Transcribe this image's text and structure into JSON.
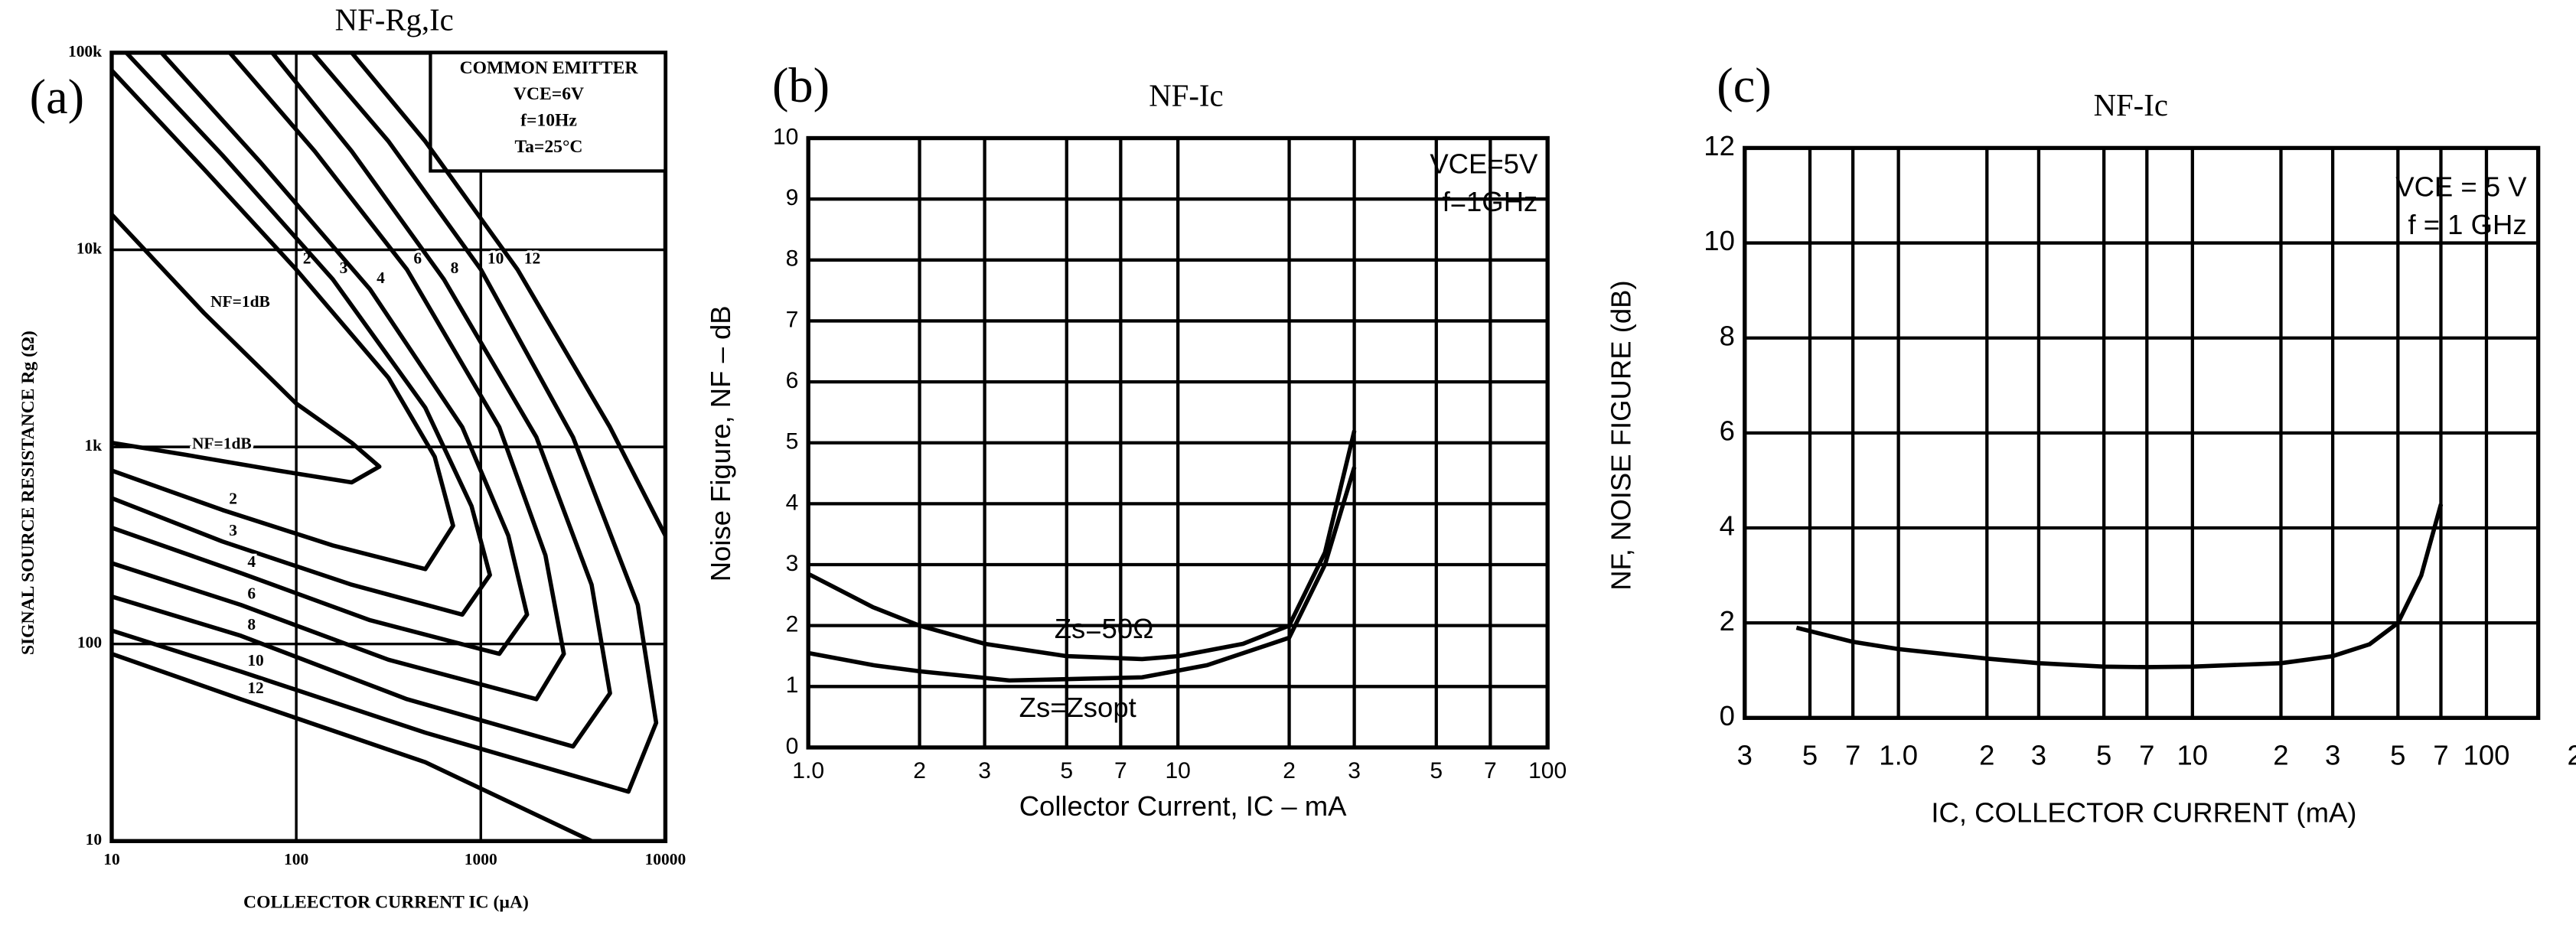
{
  "chart_data": [
    {
      "type": "line",
      "panel": "(a)",
      "title": "NF-Rg,Ic",
      "x_label": "COLLEECTOR CURRENT IC (µA)",
      "y_label": "SIGNAL SOURCE RESISTANCE Rg (Ω)",
      "annotations": [
        "COMMON EMITTER",
        "VCE=6V",
        "f=10Hz",
        "Ta=25°C"
      ],
      "xscale": "log",
      "yscale": "log",
      "grid": true,
      "xlim": [
        10,
        10000
      ],
      "ylim": [
        10,
        100000
      ],
      "xticks": [
        10,
        100,
        1000,
        10000
      ],
      "yticks": [
        10,
        100,
        {
          "value": 1000,
          "label": "1k"
        },
        {
          "value": 10000,
          "label": "10k"
        },
        {
          "value": 100000,
          "label": "100k"
        }
      ],
      "series": [
        {
          "name": "NF=1dB",
          "color": "#000000",
          "x": [
            10,
            31.6,
            100,
            200,
            282,
            200,
            79.4,
            25.1,
            10
          ],
          "values": [
            15100,
            4790,
            1660,
            1050,
            794,
            661,
            759,
            912,
            1050
          ]
        },
        {
          "name": "2",
          "color": "#000000",
          "x": [
            10,
            31.6,
            100,
            316,
            562,
            708,
            501,
            158,
            39.8,
            10
          ],
          "values": [
            81300,
            25700,
            7940,
            2240,
            891,
            398,
            240,
            316,
            479,
            759
          ]
        },
        {
          "name": "3",
          "color": "#000000",
          "x": [
            12,
            39.8,
            158,
            501,
            891,
            1120,
            794,
            200,
            39.8,
            10
          ],
          "values": [
            100000,
            30200,
            7080,
            1580,
            501,
            224,
            141,
            200,
            331,
            550
          ]
        },
        {
          "name": "4",
          "color": "#000000",
          "x": [
            18.6,
            63.1,
            251,
            794,
            1410,
            1780,
            1260,
            251,
            50.1,
            10
          ],
          "values": [
            100000,
            28200,
            6310,
            1260,
            355,
            141,
            89.1,
            132,
            229,
            389
          ]
        },
        {
          "name": "6",
          "color": "#000000",
          "x": [
            43.7,
            126,
            398,
            1260,
            2240,
            2820,
            2000,
            316,
            50.1,
            10
          ],
          "values": [
            100000,
            31600,
            7940,
            1260,
            282,
            89.1,
            52.5,
            83.2,
            158,
            257
          ]
        },
        {
          "name": "8",
          "color": "#000000",
          "x": [
            74.1,
            200,
            631,
            2000,
            3980,
            5010,
            3160,
            398,
            50.1,
            10
          ],
          "values": [
            100000,
            31600,
            7080,
            1120,
            200,
            56.2,
            30.2,
            52.5,
            110,
            174
          ]
        },
        {
          "name": "10",
          "color": "#000000",
          "x": [
            123,
            316,
            1000,
            3160,
            7080,
            8910,
            6310,
            501,
            50.1,
            10
          ],
          "values": [
            100000,
            35500,
            7940,
            1120,
            158,
            39.8,
            17.8,
            35.5,
            72.4,
            117
          ]
        },
        {
          "name": "12",
          "color": "#000000",
          "x": [
            200,
            501,
            1580,
            5010,
            10000,
            null,
            3980,
            501,
            50.1,
            10
          ],
          "values": [
            100000,
            35500,
            7940,
            1260,
            355,
            null,
            10,
            25.1,
            52.5,
            89.1
          ]
        }
      ]
    },
    {
      "type": "line",
      "panel": "(b)",
      "title": "NF-Ic",
      "x_label": "Collector Current, IC – mA",
      "y_label": "Noise Figure, NF – dB",
      "annotations": [
        "VCE=5V",
        "f=1GHz"
      ],
      "xscale": "log",
      "grid": true,
      "xlim": [
        1,
        100
      ],
      "ylim": [
        0,
        10
      ],
      "xticks": [
        {
          "value": 1,
          "label": "1.0"
        },
        2,
        3,
        5,
        7,
        10,
        {
          "value": 20,
          "label": "2"
        },
        {
          "value": 30,
          "label": "3"
        },
        {
          "value": 50,
          "label": "5"
        },
        {
          "value": 70,
          "label": "7"
        },
        100
      ],
      "yticks": [
        0,
        1,
        2,
        3,
        4,
        5,
        6,
        7,
        8,
        9,
        10
      ],
      "series": [
        {
          "name": "Zs=50Ω",
          "color": "#000000",
          "x": [
            1,
            1.5,
            2,
            3,
            5,
            8,
            10,
            15,
            20,
            25,
            30
          ],
          "values": [
            2.85,
            2.3,
            2.0,
            1.7,
            1.5,
            1.45,
            1.5,
            1.7,
            2.0,
            3.2,
            5.2
          ]
        },
        {
          "name": "Zs=Zsopt",
          "color": "#000000",
          "x": [
            1,
            1.5,
            2,
            3.5,
            5,
            8,
            12,
            20,
            25,
            30
          ],
          "values": [
            1.55,
            1.35,
            1.25,
            1.1,
            1.12,
            1.15,
            1.35,
            1.8,
            3.0,
            4.6
          ]
        }
      ]
    },
    {
      "type": "line",
      "panel": "(c)",
      "title": "NF-Ic",
      "x_label": "IC, COLLECTOR CURRENT (mA)",
      "y_label": "NF, NOISE FIGURE (dB)",
      "annotations": [
        "VCE = 5 V",
        "f = 1 GHz"
      ],
      "xscale": "log",
      "grid": true,
      "xlim": [
        0.3,
        150
      ],
      "ylim": [
        0,
        12
      ],
      "xticks": [
        {
          "value": 0.3,
          "label": "3"
        },
        {
          "value": 0.5,
          "label": "5"
        },
        {
          "value": 0.7,
          "label": "7"
        },
        {
          "value": 1,
          "label": "1.0"
        },
        2,
        3,
        5,
        7,
        10,
        {
          "value": 20,
          "label": "2"
        },
        {
          "value": 30,
          "label": "3"
        },
        {
          "value": 50,
          "label": "5"
        },
        {
          "value": 70,
          "label": "7"
        },
        100,
        {
          "value": 200,
          "label": "2"
        }
      ],
      "yticks": [
        0,
        2,
        4,
        6,
        8,
        10,
        12
      ],
      "series": [
        {
          "color": "#000000",
          "x": [
            0.45,
            0.7,
            1,
            2,
            3,
            5,
            7,
            10,
            20,
            30,
            40,
            50,
            60,
            70
          ],
          "values": [
            1.9,
            1.6,
            1.45,
            1.25,
            1.15,
            1.08,
            1.07,
            1.08,
            1.15,
            1.3,
            1.55,
            2.0,
            3.0,
            4.5
          ]
        }
      ]
    }
  ]
}
